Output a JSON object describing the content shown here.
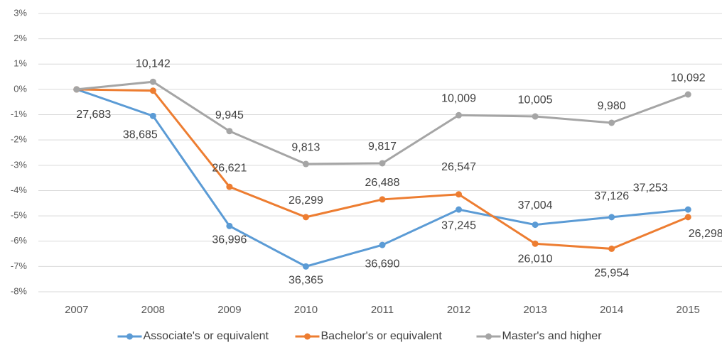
{
  "chart_data": {
    "type": "line",
    "categories": [
      "2007",
      "2008",
      "2009",
      "2010",
      "2011",
      "2012",
      "2013",
      "2014",
      "2015"
    ],
    "ylim": [
      -8,
      3
    ],
    "yticks": [
      {
        "value": -8,
        "label": "-8%"
      },
      {
        "value": -7,
        "label": "-7%"
      },
      {
        "value": -6,
        "label": "-6%"
      },
      {
        "value": -5,
        "label": "-5%"
      },
      {
        "value": -4,
        "label": "-4%"
      },
      {
        "value": -3,
        "label": "-3%"
      },
      {
        "value": -2,
        "label": "-2%"
      },
      {
        "value": -1,
        "label": "-1%"
      },
      {
        "value": 0,
        "label": "0%"
      },
      {
        "value": 1,
        "label": "1%"
      },
      {
        "value": 2,
        "label": "2%"
      },
      {
        "value": 3,
        "label": "3%"
      }
    ],
    "grid": true,
    "legend": "bottom",
    "series": [
      {
        "name": "Associate's or equivalent",
        "color": "#5b9bd5",
        "values": [
          0,
          -1.05,
          -5.4,
          -7.0,
          -6.15,
          -4.75,
          -5.35,
          -5.05,
          -4.75
        ],
        "data_labels": [
          null,
          "38,685",
          "36,996",
          "36,365",
          "36,690",
          "37,245",
          "37,004",
          "37,126",
          "37,253"
        ]
      },
      {
        "name": "Bachelor's or equivalent",
        "color": "#ed7d31",
        "values": [
          0,
          -0.05,
          -3.85,
          -5.05,
          -4.35,
          -4.15,
          -6.1,
          -6.3,
          -5.05
        ],
        "data_labels": [
          "27,683",
          null,
          "26,621",
          "26,299",
          "26,488",
          "26,547",
          "26,010",
          "25,954",
          "26,298"
        ]
      },
      {
        "name": "Master's and higher",
        "color": "#a5a5a5",
        "values": [
          0,
          0.3,
          -1.65,
          -2.95,
          -2.92,
          -1.02,
          -1.07,
          -1.32,
          -0.2
        ],
        "data_labels": [
          null,
          "10,142",
          "9,945",
          "9,813",
          "9,817",
          "10,009",
          "10,005",
          "9,980",
          "10,092"
        ]
      }
    ]
  }
}
